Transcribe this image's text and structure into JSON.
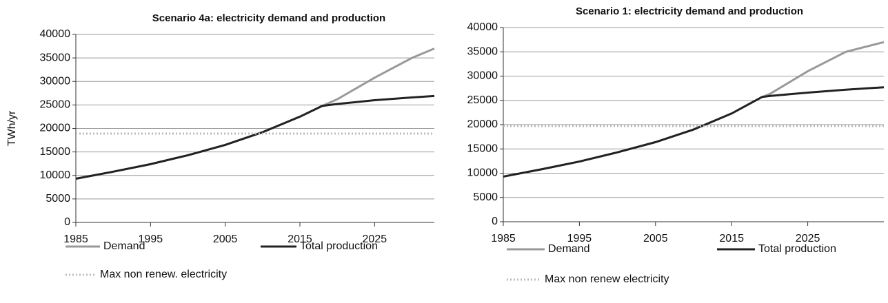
{
  "chart_data": [
    {
      "type": "line",
      "title": "Scenario 4a: electricity demand and production",
      "y_label": "TWh/yr",
      "x": [
        1985,
        1990,
        1995,
        2000,
        2005,
        2010,
        2015,
        2018,
        2020,
        2025,
        2030,
        2033
      ],
      "xlim": [
        1985,
        2033
      ],
      "xticks": [
        1985,
        1995,
        2005,
        2015,
        2025
      ],
      "ylim": [
        0,
        40000
      ],
      "yticks": [
        0,
        5000,
        10000,
        15000,
        20000,
        25000,
        30000,
        35000,
        40000
      ],
      "grid": true,
      "series": [
        {
          "name": "Demand",
          "color": "#999999",
          "values": [
            9300,
            10800,
            12400,
            14300,
            16500,
            19200,
            22500,
            24800,
            26200,
            30800,
            35000,
            37000
          ]
        },
        {
          "name": "Total production",
          "color": "#222222",
          "values": [
            9300,
            10800,
            12400,
            14300,
            16500,
            19200,
            22500,
            24800,
            25200,
            26000,
            26600,
            26900
          ]
        },
        {
          "name": "Max non renew. electricity",
          "color": "#bbbbbb",
          "style": "dotted",
          "values": [
            18900,
            18900,
            18900,
            18900,
            18900,
            18900,
            18900,
            18900,
            18900,
            18900,
            18900,
            18900
          ]
        }
      ]
    },
    {
      "type": "line",
      "title": "Scenario 1: electricity demand and production",
      "x": [
        1985,
        1990,
        1995,
        2000,
        2005,
        2010,
        2015,
        2019,
        2020,
        2025,
        2030,
        2035
      ],
      "xlim": [
        1985,
        2035
      ],
      "xticks": [
        1985,
        1995,
        2005,
        2015,
        2025
      ],
      "ylim": [
        0,
        40000
      ],
      "yticks": [
        0,
        5000,
        10000,
        15000,
        20000,
        25000,
        30000,
        35000,
        40000
      ],
      "grid": true,
      "series": [
        {
          "name": "Demand",
          "color": "#999999",
          "values": [
            9300,
            10800,
            12400,
            14300,
            16400,
            19000,
            22300,
            25700,
            26300,
            31000,
            35000,
            37000
          ]
        },
        {
          "name": "Total production",
          "color": "#222222",
          "values": [
            9300,
            10800,
            12400,
            14300,
            16400,
            19000,
            22300,
            25700,
            25900,
            26600,
            27200,
            27700
          ]
        },
        {
          "name": "Max non renew electricity",
          "color": "#bbbbbb",
          "style": "dotted",
          "values": [
            19700,
            19700,
            19700,
            19700,
            19700,
            19700,
            19700,
            19700,
            19700,
            19700,
            19700,
            19700
          ]
        }
      ]
    }
  ]
}
